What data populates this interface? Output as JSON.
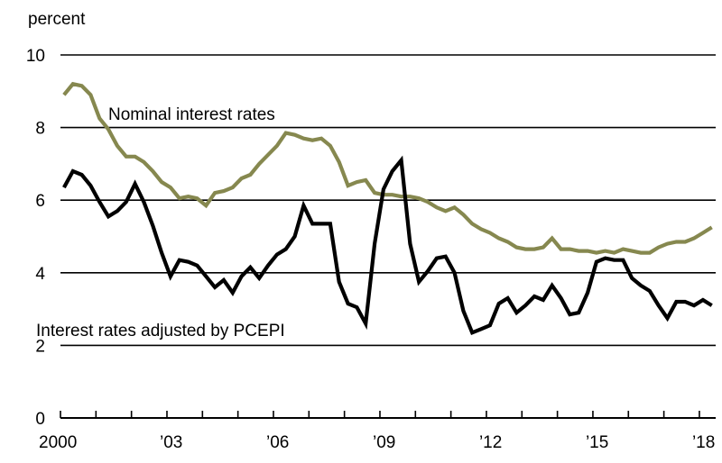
{
  "chart_data": {
    "type": "line",
    "ylabel": "percent",
    "ylim": [
      0,
      10
    ],
    "yticks": [
      "0",
      "2",
      "4",
      "6",
      "8",
      "10"
    ],
    "ytick_values": [
      0,
      2,
      4,
      6,
      8,
      10
    ],
    "xlim": [
      2000,
      2018.6
    ],
    "xticks": [
      "2000",
      "’03",
      "’06",
      "’09",
      "’12",
      "’15",
      "’18"
    ],
    "xtick_values": [
      2000,
      2003,
      2006,
      2009,
      2012,
      2015,
      2018
    ],
    "grid": true,
    "x_start": 2000.1,
    "x_step": 0.25,
    "series": [
      {
        "name": "Nominal interest rates",
        "color": "#86884f",
        "values": [
          8.9,
          9.2,
          9.15,
          8.9,
          8.25,
          7.95,
          7.5,
          7.2,
          7.2,
          7.05,
          6.8,
          6.5,
          6.35,
          6.05,
          6.1,
          6.05,
          5.85,
          6.2,
          6.25,
          6.35,
          6.6,
          6.7,
          7.0,
          7.25,
          7.5,
          7.85,
          7.8,
          7.7,
          7.65,
          7.7,
          7.5,
          7.05,
          6.4,
          6.5,
          6.55,
          6.2,
          6.15,
          6.15,
          6.1,
          6.1,
          6.05,
          5.95,
          5.8,
          5.7,
          5.8,
          5.6,
          5.35,
          5.2,
          5.1,
          4.95,
          4.85,
          4.7,
          4.65,
          4.65,
          4.7,
          4.95,
          4.65,
          4.65,
          4.6,
          4.6,
          4.55,
          4.6,
          4.55,
          4.65,
          4.6,
          4.55,
          4.55,
          4.7,
          4.8,
          4.85,
          4.85,
          4.95,
          5.1,
          5.25
        ]
      },
      {
        "name": "Interest rates adjusted by PCEPI",
        "color": "#000000",
        "values": [
          6.35,
          6.8,
          6.7,
          6.4,
          5.95,
          5.55,
          5.7,
          5.95,
          6.45,
          5.95,
          5.3,
          4.55,
          3.9,
          4.35,
          4.3,
          4.2,
          3.9,
          3.6,
          3.8,
          3.45,
          3.9,
          4.15,
          3.85,
          4.2,
          4.5,
          4.65,
          5.0,
          5.85,
          5.35,
          5.35,
          5.35,
          3.75,
          3.15,
          3.05,
          2.6,
          4.8,
          6.3,
          6.8,
          7.1,
          4.8,
          3.75,
          4.05,
          4.4,
          4.45,
          4.0,
          2.95,
          2.35,
          2.45,
          2.55,
          3.15,
          3.3,
          2.9,
          3.1,
          3.35,
          3.25,
          3.65,
          3.3,
          2.85,
          2.9,
          3.45,
          4.3,
          4.4,
          4.35,
          4.35,
          3.85,
          3.65,
          3.5,
          3.1,
          2.75,
          3.2,
          3.2,
          3.1,
          3.25,
          3.1
        ]
      }
    ],
    "annotations": [
      {
        "text": "Nominal interest rates",
        "series": 0
      },
      {
        "text": "Interest rates adjusted by PCEPI",
        "series": 1
      }
    ]
  }
}
